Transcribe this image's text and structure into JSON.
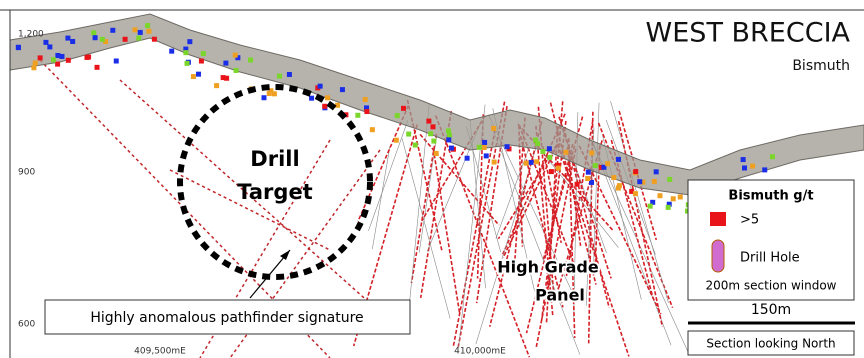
{
  "title": "WEST BRECCIA",
  "subtitle": "Bismuth",
  "elevation_labels": [
    "1,200",
    "900",
    "600"
  ],
  "easting_labels": [
    "409,500mE",
    "410,000mE"
  ],
  "target_label": [
    "Drill",
    "Target"
  ],
  "panel_label": [
    "High Grade",
    "Panel"
  ],
  "callout": "Highly anomalous pathfinder signature",
  "legend": {
    "title": "Bismuth g/t",
    "items": [
      ">5",
      "Drill Hole"
    ],
    "note": "200m section window"
  },
  "scale": {
    "label": "150m",
    "caption": "Section looking North"
  }
}
